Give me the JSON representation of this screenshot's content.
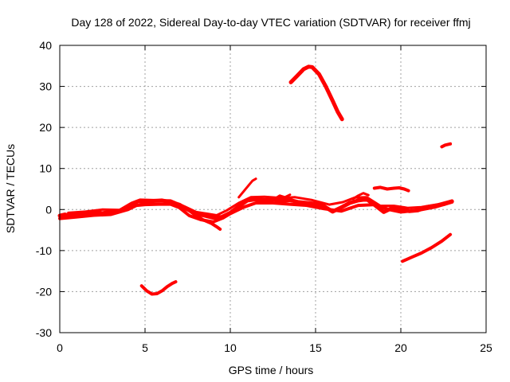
{
  "chart_data": {
    "type": "scatter",
    "title": "Day 128 of 2022, Sidereal Day-to-day VTEC variation (SDTVAR) for receiver ffmj",
    "xlabel": "GPS time / hours",
    "ylabel": "SDTVAR / TECUs",
    "xlim": [
      0,
      25
    ],
    "ylim": [
      -30,
      40
    ],
    "xticks": [
      0,
      5,
      10,
      15,
      20,
      25
    ],
    "yticks": [
      -30,
      -20,
      -10,
      0,
      10,
      20,
      30,
      40
    ],
    "xtick_labels": [
      "0",
      "5",
      "10",
      "15",
      "20",
      "25"
    ],
    "ytick_labels": [
      "-30",
      "-20",
      "-10",
      "0",
      "10",
      "20",
      "30",
      "40"
    ],
    "grid": true,
    "color": "#ff0000",
    "series": [
      {
        "name": "main-band",
        "width": 5,
        "x": [
          0,
          0.3,
          0.6,
          1,
          1.5,
          2,
          2.5,
          3,
          3.5,
          4,
          4.3,
          4.6,
          5,
          5.5,
          6,
          6.5,
          7,
          7.5,
          8,
          8.5,
          9,
          9.5,
          10,
          10.5,
          11,
          11.5,
          12,
          12.5,
          13,
          13.5,
          14,
          14.5,
          15,
          15.5,
          16,
          16.5,
          17,
          17.5,
          18,
          18.5,
          19,
          19.5,
          20,
          20.5,
          21,
          21.5,
          22,
          22.5,
          23
        ],
        "y": [
          -1.5,
          -1.2,
          -1.5,
          -1,
          -0.8,
          -0.6,
          -0.9,
          -0.5,
          -0.3,
          0.5,
          1.5,
          2,
          1.8,
          2.1,
          2.2,
          1.8,
          1.2,
          0,
          -1,
          -1.5,
          -2,
          -1.8,
          -0.8,
          0.8,
          2.2,
          2.5,
          2.3,
          2.5,
          2.1,
          2.3,
          1.8,
          1.6,
          1.4,
          0.8,
          -0.5,
          0.5,
          1.6,
          2.2,
          2.5,
          1,
          -0.6,
          0.4,
          0.1,
          -0.4,
          -0.2,
          0.6,
          0.9,
          1.3,
          2
        ]
      },
      {
        "name": "band-lower",
        "width": 4,
        "x": [
          0,
          1,
          2,
          3,
          4,
          4.5,
          5,
          5.8,
          6.5,
          7,
          7.6,
          8.3,
          9,
          9.6,
          10,
          10.8,
          11.5,
          12.5,
          13.5,
          14.5,
          15.5,
          16.5,
          17.5,
          18.5,
          19.3,
          20,
          21,
          22,
          23
        ],
        "y": [
          -2.2,
          -1.8,
          -1.4,
          -1.2,
          0,
          1,
          1.2,
          1.3,
          1.3,
          0.5,
          -1.5,
          -2.5,
          -3,
          -2,
          -1,
          0.6,
          1.6,
          1.6,
          1.3,
          1,
          0.2,
          -0.4,
          1,
          1.2,
          0,
          -0.6,
          -0.2,
          0.6,
          1.8
        ]
      },
      {
        "name": "band-upper",
        "width": 3,
        "x": [
          0.5,
          1.5,
          2.5,
          3.5,
          4.2,
          4.7,
          5.5,
          6.5,
          7.3,
          8,
          8.6,
          9.2,
          9.8,
          10.5,
          11.2,
          12,
          13,
          13.8,
          14.8,
          15.8,
          16.6,
          17.3,
          18,
          18.8,
          19.6,
          20.4,
          21.2,
          22.2,
          23
        ],
        "y": [
          -0.8,
          -0.5,
          0,
          -0.1,
          1.6,
          2.4,
          2.3,
          2.2,
          0.8,
          -0.6,
          -1,
          -1.4,
          -0.2,
          1.6,
          3,
          3.1,
          2.8,
          3,
          2.3,
          1.2,
          1.8,
          2.9,
          3,
          0.9,
          0.9,
          0.4,
          0.6,
          1.3,
          2.2
        ]
      },
      {
        "name": "dip-8-9h",
        "width": 4,
        "x": [
          7.4,
          7.9,
          8.4,
          8.9,
          9.2,
          9.4
        ],
        "y": [
          0.3,
          -1.2,
          -2.5,
          -3.4,
          -4.2,
          -4.8
        ]
      },
      {
        "name": "spike-11h",
        "width": 3,
        "x": [
          10.5,
          10.8,
          11.1,
          11.3,
          11.5
        ],
        "y": [
          3,
          4.5,
          6,
          7,
          7.5
        ]
      },
      {
        "name": "spike-13-14h",
        "width": 3,
        "x": [
          12.6,
          12.9,
          13.2,
          13.5
        ],
        "y": [
          2.6,
          3.4,
          3,
          3.6
        ]
      },
      {
        "name": "spike-17-18h",
        "width": 3,
        "x": [
          17.2,
          17.5,
          17.8,
          18.1
        ],
        "y": [
          2.6,
          3.4,
          4,
          3.5
        ]
      },
      {
        "name": "arc-14-16h",
        "width": 5,
        "x": [
          13.55,
          13.9,
          14.3,
          14.6,
          14.8,
          15.2,
          15.6,
          16,
          16.3,
          16.55
        ],
        "y": [
          31,
          32.5,
          34.2,
          34.8,
          34.7,
          33,
          30,
          26.5,
          23.8,
          22
        ]
      },
      {
        "name": "segment-18-20h",
        "width": 4,
        "x": [
          18.45,
          18.8,
          19.2,
          19.6,
          19.9,
          20.2,
          20.45
        ],
        "y": [
          5.2,
          5.4,
          5,
          5.2,
          5.3,
          5,
          4.6
        ]
      },
      {
        "name": "segment-22-23h",
        "width": 4,
        "x": [
          22.4,
          22.6,
          22.9
        ],
        "y": [
          15.3,
          15.7,
          16
        ]
      },
      {
        "name": "segment-20-23h",
        "width": 4,
        "x": [
          20.1,
          20.6,
          21.2,
          21.8,
          22.4,
          22.9
        ],
        "y": [
          -12.6,
          -11.7,
          -10.6,
          -9.3,
          -7.7,
          -6.1
        ]
      },
      {
        "name": "segment-5-7h",
        "width": 4,
        "x": [
          4.8,
          5.1,
          5.4,
          5.7,
          6,
          6.3,
          6.6,
          6.8
        ],
        "y": [
          -18.6,
          -19.8,
          -20.6,
          -20.5,
          -19.8,
          -18.8,
          -18,
          -17.6
        ]
      }
    ]
  }
}
